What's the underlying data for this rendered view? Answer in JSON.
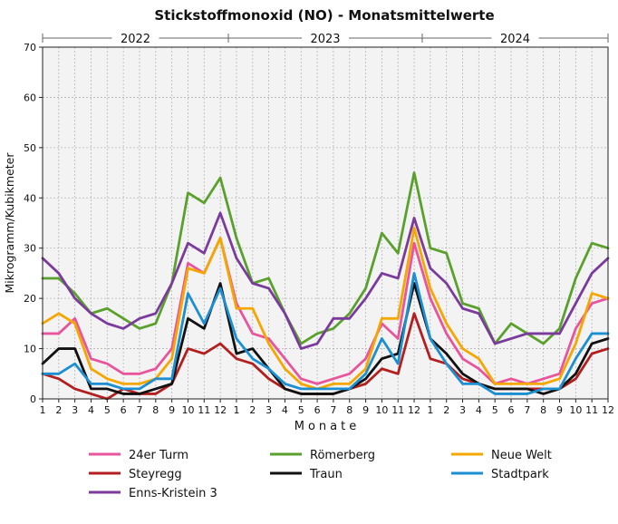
{
  "chart_data": {
    "type": "line",
    "title": "Stickstoffmonoxid (NO) - Monatsmittelwerte",
    "xlabel": "Monate",
    "ylabel": "Mikrogramm/Kubikmeter",
    "ylim": [
      0,
      70
    ],
    "yticks": [
      "0",
      "10",
      "20",
      "30",
      "40",
      "50",
      "60",
      "70"
    ],
    "grid": true,
    "years": [
      "2022",
      "2023",
      "2024"
    ],
    "x_tick_labels": [
      "1",
      "2",
      "3",
      "4",
      "5",
      "6",
      "7",
      "8",
      "9",
      "10",
      "11",
      "12",
      "1",
      "2",
      "3",
      "4",
      "5",
      "6",
      "7",
      "8",
      "9",
      "10",
      "11",
      "12",
      "1",
      "2",
      "3",
      "4",
      "5",
      "6",
      "7",
      "8",
      "9",
      "10",
      "11",
      "12"
    ],
    "legend_position": "bottom",
    "series": [
      {
        "name": "24er Turm",
        "color": "#e8559c",
        "values": [
          13,
          13,
          16,
          8,
          7,
          5,
          5,
          6,
          10,
          27,
          25,
          32,
          19,
          13,
          12,
          8,
          4,
          3,
          4,
          5,
          8,
          15,
          12,
          31,
          20,
          13,
          8,
          6,
          3,
          4,
          3,
          4,
          5,
          14,
          19,
          20
        ]
      },
      {
        "name": "Römerberg",
        "color": "#5aa02c",
        "values": [
          24,
          24,
          21,
          17,
          18,
          16,
          14,
          15,
          23,
          41,
          39,
          44,
          32,
          23,
          24,
          17,
          11,
          13,
          14,
          17,
          22,
          33,
          29,
          45,
          30,
          29,
          19,
          18,
          11,
          15,
          13,
          11,
          14,
          24,
          31,
          30
        ]
      },
      {
        "name": "Neue Welt",
        "color": "#f5a700",
        "values": [
          15,
          17,
          15,
          6,
          4,
          3,
          3,
          4,
          8,
          26,
          25,
          32,
          18,
          18,
          11,
          6,
          3,
          2,
          3,
          3,
          6,
          16,
          16,
          34,
          22,
          15,
          10,
          8,
          3,
          3,
          3,
          3,
          4,
          11,
          21,
          20
        ]
      },
      {
        "name": "Steyregg",
        "color": "#b31f1f",
        "values": [
          5,
          4,
          2,
          1,
          0,
          2,
          1,
          1,
          3,
          10,
          9,
          11,
          8,
          7,
          4,
          2,
          1,
          1,
          1,
          2,
          3,
          6,
          5,
          17,
          8,
          7,
          4,
          3,
          2,
          2,
          2,
          2,
          2,
          4,
          9,
          10
        ]
      },
      {
        "name": "Traun",
        "color": "#111111",
        "values": [
          7,
          10,
          10,
          2,
          2,
          1,
          1,
          2,
          3,
          16,
          14,
          23,
          9,
          10,
          6,
          2,
          1,
          1,
          1,
          2,
          4,
          8,
          9,
          23,
          12,
          9,
          5,
          3,
          2,
          2,
          2,
          1,
          2,
          5,
          11,
          12
        ]
      },
      {
        "name": "Stadtpark",
        "color": "#1b8fd1",
        "values": [
          5,
          5,
          7,
          3,
          3,
          2,
          2,
          4,
          4,
          21,
          15,
          22,
          12,
          8,
          6,
          3,
          2,
          2,
          2,
          2,
          5,
          12,
          7,
          25,
          12,
          7,
          3,
          3,
          1,
          1,
          1,
          2,
          2,
          8,
          13,
          13
        ]
      },
      {
        "name": "Enns-Kristein 3",
        "color": "#7a3b9c",
        "values": [
          28,
          25,
          20,
          17,
          15,
          14,
          16,
          17,
          23,
          31,
          29,
          37,
          28,
          23,
          22,
          17,
          10,
          11,
          16,
          16,
          20,
          25,
          24,
          36,
          26,
          23,
          18,
          17,
          11,
          12,
          13,
          13,
          13,
          19,
          25,
          28
        ]
      }
    ]
  }
}
